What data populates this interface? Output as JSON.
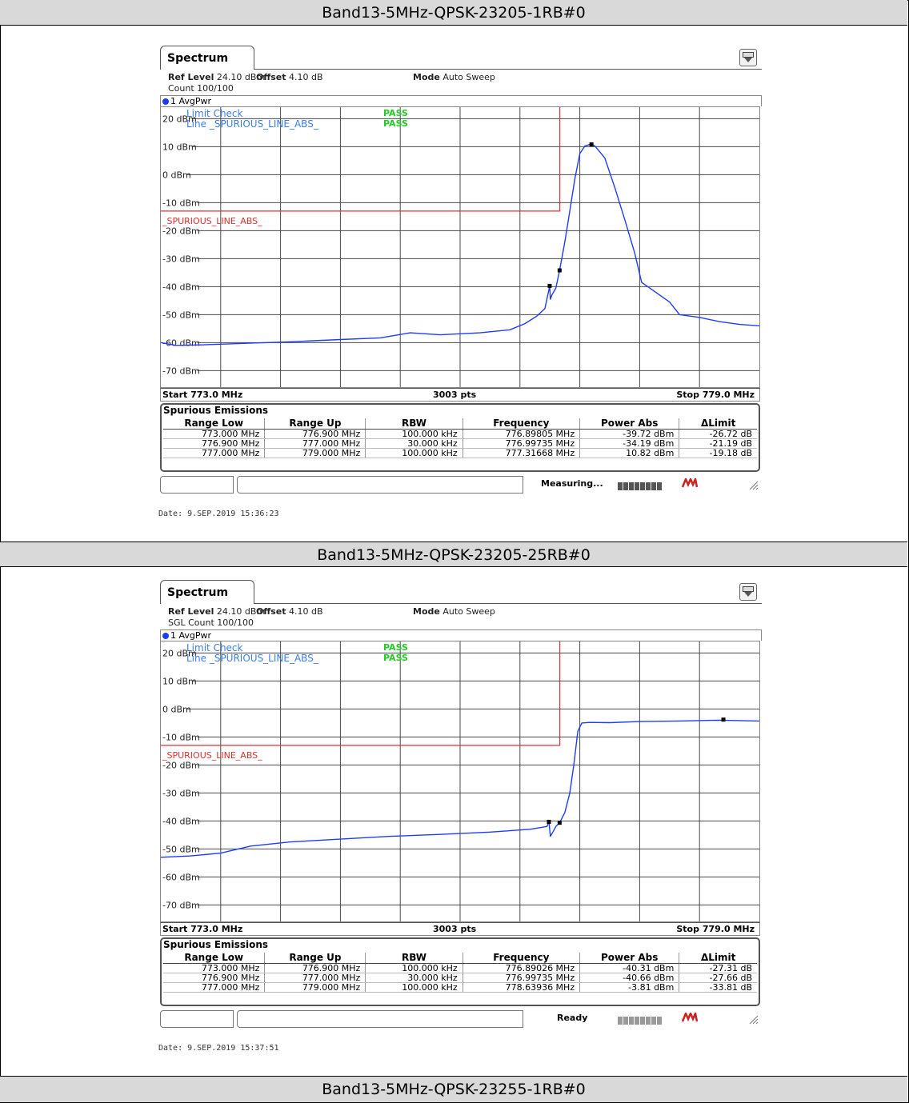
{
  "panels": [
    {
      "title": "Band13-5MHz-QPSK-23205-1RB#0",
      "tab_label": "Spectrum",
      "ref_level_label": "Ref Level",
      "ref_level_value": "24.10 dBm",
      "offset_label": "Offset",
      "offset_value": "4.10 dB",
      "mode_label": "Mode",
      "mode_value": "Auto Sweep",
      "count_text": "Count 100/100",
      "trace_label": "1 AvgPwr",
      "limit_check_label": "Limit Check",
      "limit_check_result": "PASS",
      "line_label": "Line _SPURIOUS_LINE_ABS_",
      "line_result": "PASS",
      "limit_line_name": "_SPURIOUS_LINE_ABS_",
      "start_label": "Start 773.0 MHz",
      "points_label": "3003 pts",
      "stop_label": "Stop 779.0 MHz",
      "spurious_title": "Spurious Emissions",
      "table_headers": [
        "Range Low",
        "Range Up",
        "RBW",
        "Frequency",
        "Power Abs",
        "ΔLimit"
      ],
      "table_rows": [
        [
          "773.000 MHz",
          "776.900 MHz",
          "100.000 kHz",
          "776.89805 MHz",
          "-39.72 dBm",
          "-26.72 dB"
        ],
        [
          "776.900 MHz",
          "777.000 MHz",
          "30.000 kHz",
          "776.99735 MHz",
          "-34.19 dBm",
          "-21.19 dB"
        ],
        [
          "777.000 MHz",
          "779.000 MHz",
          "100.000 kHz",
          "777.31668 MHz",
          "10.82 dBm",
          "-19.18 dB"
        ]
      ],
      "status_text": "Measuring...",
      "date_text": "Date: 9.SEP.2019  15:36:23"
    },
    {
      "title": "Band13-5MHz-QPSK-23205-25RB#0",
      "tab_label": "Spectrum",
      "ref_level_label": "Ref Level",
      "ref_level_value": "24.10 dBm",
      "offset_label": "Offset",
      "offset_value": "4.10 dB",
      "mode_label": "Mode",
      "mode_value": "Auto Sweep",
      "count_text": "SGL Count 100/100",
      "trace_label": "1 AvgPwr",
      "limit_check_label": "Limit Check",
      "limit_check_result": "PASS",
      "line_label": "Line _SPURIOUS_LINE_ABS_",
      "line_result": "PASS",
      "limit_line_name": "_SPURIOUS_LINE_ABS_",
      "start_label": "Start 773.0 MHz",
      "points_label": "3003 pts",
      "stop_label": "Stop 779.0 MHz",
      "spurious_title": "Spurious Emissions",
      "table_headers": [
        "Range Low",
        "Range Up",
        "RBW",
        "Frequency",
        "Power Abs",
        "ΔLimit"
      ],
      "table_rows": [
        [
          "773.000 MHz",
          "776.900 MHz",
          "100.000 kHz",
          "776.89026 MHz",
          "-40.31 dBm",
          "-27.31 dB"
        ],
        [
          "776.900 MHz",
          "777.000 MHz",
          "30.000 kHz",
          "776.99735 MHz",
          "-40.66 dBm",
          "-27.66 dB"
        ],
        [
          "777.000 MHz",
          "779.000 MHz",
          "100.000 kHz",
          "778.63936 MHz",
          "-3.81 dBm",
          "-33.81 dB"
        ]
      ],
      "status_text": "Ready",
      "date_text": "Date: 9.SEP.2019  15:37:51"
    }
  ],
  "next_title": "Band13-5MHz-QPSK-23255-1RB#0",
  "colors": {
    "trace": "#1e3cff",
    "limit": "#e03030",
    "pass": "#22cc22",
    "label_blue": "#3a7ee8",
    "header_bg": "#d9d9d9"
  },
  "chart_data": [
    {
      "type": "line",
      "xlabel": "",
      "ylabel": "",
      "xlim": [
        773.0,
        779.0
      ],
      "ylim": [
        -75.9,
        24.1
      ],
      "y_ticks": [
        20,
        10,
        0,
        -10,
        -20,
        -30,
        -40,
        -50,
        -60,
        -70
      ],
      "y_tick_labels": [
        "20 dBm",
        "10 dBm",
        "0 dBm",
        "-10 dBm",
        "-20 dBm",
        "-30 dBm",
        "-40 dBm",
        "-50 dBm",
        "-60 dBm",
        "-70 dBm"
      ],
      "grid": true,
      "limit_line": {
        "x": [
          773.0,
          777.0,
          777.0
        ],
        "y": [
          -13.0,
          -13.0,
          24.1
        ]
      },
      "series": [
        {
          "x": [
            773.0,
            773.15,
            773.4,
            773.8,
            774.3,
            774.8,
            775.2,
            775.5,
            775.8,
            776.2,
            776.5,
            776.65,
            776.77,
            776.85,
            776.898,
            776.905,
            776.92,
            776.96,
            776.997,
            777.05,
            777.1,
            777.15,
            777.2,
            777.25,
            777.3,
            777.35,
            777.45,
            777.55,
            777.65,
            777.75,
            777.82,
            777.9,
            778.0,
            778.1,
            778.2,
            778.4,
            778.6,
            778.8,
            779.0
          ],
          "y": [
            -60.0,
            -61.0,
            -60.8,
            -60.3,
            -59.7,
            -58.9,
            -58.3,
            -56.5,
            -57.2,
            -56.5,
            -55.4,
            -53.2,
            -50.5,
            -47.8,
            -39.7,
            -44.5,
            -43.0,
            -40.5,
            -34.2,
            -24.0,
            -13.0,
            -1.5,
            7.5,
            10.2,
            10.8,
            10.3,
            6.0,
            -4.5,
            -16.0,
            -28.0,
            -38.5,
            -40.5,
            -43.0,
            -45.5,
            -50.0,
            -51.0,
            -52.5,
            -53.5,
            -54.0
          ]
        }
      ],
      "markers": [
        {
          "x": 776.89805,
          "y": -39.72
        },
        {
          "x": 776.99735,
          "y": -34.19
        },
        {
          "x": 777.31668,
          "y": 10.82
        }
      ]
    },
    {
      "type": "line",
      "xlabel": "",
      "ylabel": "",
      "xlim": [
        773.0,
        779.0
      ],
      "ylim": [
        -75.9,
        24.1
      ],
      "y_ticks": [
        20,
        10,
        0,
        -10,
        -20,
        -30,
        -40,
        -50,
        -60,
        -70
      ],
      "y_tick_labels": [
        "20 dBm",
        "10 dBm",
        "0 dBm",
        "-10 dBm",
        "-20 dBm",
        "-30 dBm",
        "-40 dBm",
        "-50 dBm",
        "-60 dBm",
        "-70 dBm"
      ],
      "grid": true,
      "limit_line": {
        "x": [
          773.0,
          777.0,
          777.0
        ],
        "y": [
          -13.0,
          -13.0,
          24.1
        ]
      },
      "series": [
        {
          "x": [
            773.0,
            773.3,
            773.6,
            773.9,
            774.3,
            774.8,
            775.3,
            775.8,
            776.3,
            776.7,
            776.87,
            776.89,
            776.905,
            776.93,
            776.96,
            776.997,
            777.05,
            777.1,
            777.14,
            777.18,
            777.22,
            777.3,
            777.5,
            777.8,
            778.2,
            778.6,
            779.0
          ],
          "y": [
            -53.0,
            -52.5,
            -51.5,
            -49.0,
            -47.5,
            -46.5,
            -45.5,
            -44.8,
            -44.0,
            -43.0,
            -42.0,
            -40.3,
            -45.5,
            -44.0,
            -42.0,
            -40.7,
            -37.0,
            -30.0,
            -20.0,
            -8.0,
            -5.0,
            -4.8,
            -4.9,
            -4.5,
            -4.3,
            -4.0,
            -4.3
          ]
        }
      ],
      "markers": [
        {
          "x": 776.89026,
          "y": -40.31
        },
        {
          "x": 776.99735,
          "y": -40.66
        },
        {
          "x": 778.63936,
          "y": -3.81
        }
      ]
    }
  ]
}
